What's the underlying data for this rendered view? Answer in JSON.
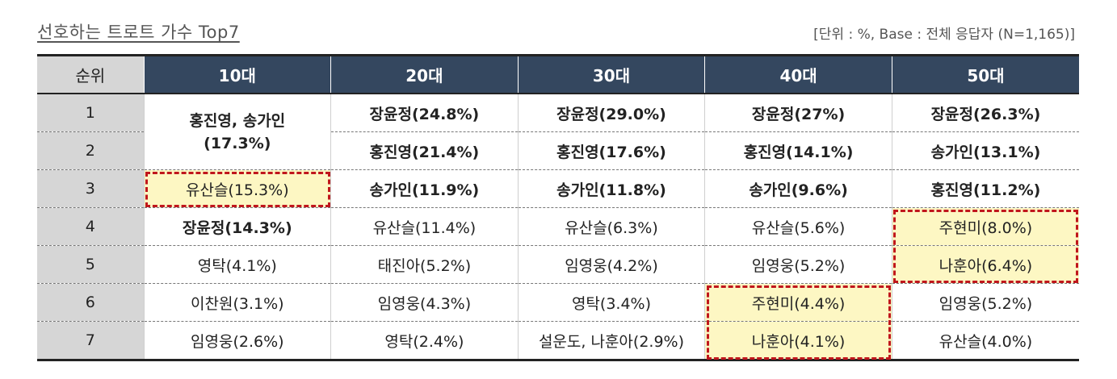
{
  "title": "선호하는 트로트 가수 Top7",
  "note": "[단위 : %, Base : 전체 응답자 (N=1,165)]",
  "colors": {
    "header_bg": "#34475f",
    "rank_bg": "#d6d6d6",
    "highlight_bg": "#fdf7c3",
    "highlight_border": "#c0161c"
  },
  "chart_data": {
    "type": "table",
    "columns": [
      "순위",
      "10대",
      "20대",
      "30대",
      "40대",
      "50대"
    ],
    "rows": [
      {
        "rank": "1",
        "cells": [
          "홍진영, 송가인 (17.3%)",
          "장윤정(24.8%)",
          "장윤정(29.0%)",
          "장윤정(27%)",
          "장윤정(26.3%)"
        ]
      },
      {
        "rank": "2",
        "cells": [
          "",
          "홍진영(21.4%)",
          "홍진영(17.6%)",
          "홍진영(14.1%)",
          "송가인(13.1%)"
        ]
      },
      {
        "rank": "3",
        "cells": [
          "유산슬(15.3%)",
          "송가인(11.9%)",
          "송가인(11.8%)",
          "송가인(9.6%)",
          "홍진영(11.2%)"
        ]
      },
      {
        "rank": "4",
        "cells": [
          "장윤정(14.3%)",
          "유산슬(11.4%)",
          "유산슬(6.3%)",
          "유산슬(5.6%)",
          "주현미(8.0%)"
        ]
      },
      {
        "rank": "5",
        "cells": [
          "영탁(4.1%)",
          "태진아(5.2%)",
          "임영웅(4.2%)",
          "임영웅(5.2%)",
          "나훈아(6.4%)"
        ]
      },
      {
        "rank": "6",
        "cells": [
          "이찬원(3.1%)",
          "임영웅(4.3%)",
          "영탁(3.4%)",
          "주현미(4.4%)",
          "임영웅(5.2%)"
        ]
      },
      {
        "rank": "7",
        "cells": [
          "임영웅(2.6%)",
          "영탁(2.4%)",
          "설운도, 나훈아(2.9%)",
          "나훈아(4.1%)",
          "유산슬(4.0%)"
        ]
      }
    ],
    "merged_cell": {
      "line1": "홍진영, 송가인",
      "line2": "(17.3%)"
    }
  }
}
